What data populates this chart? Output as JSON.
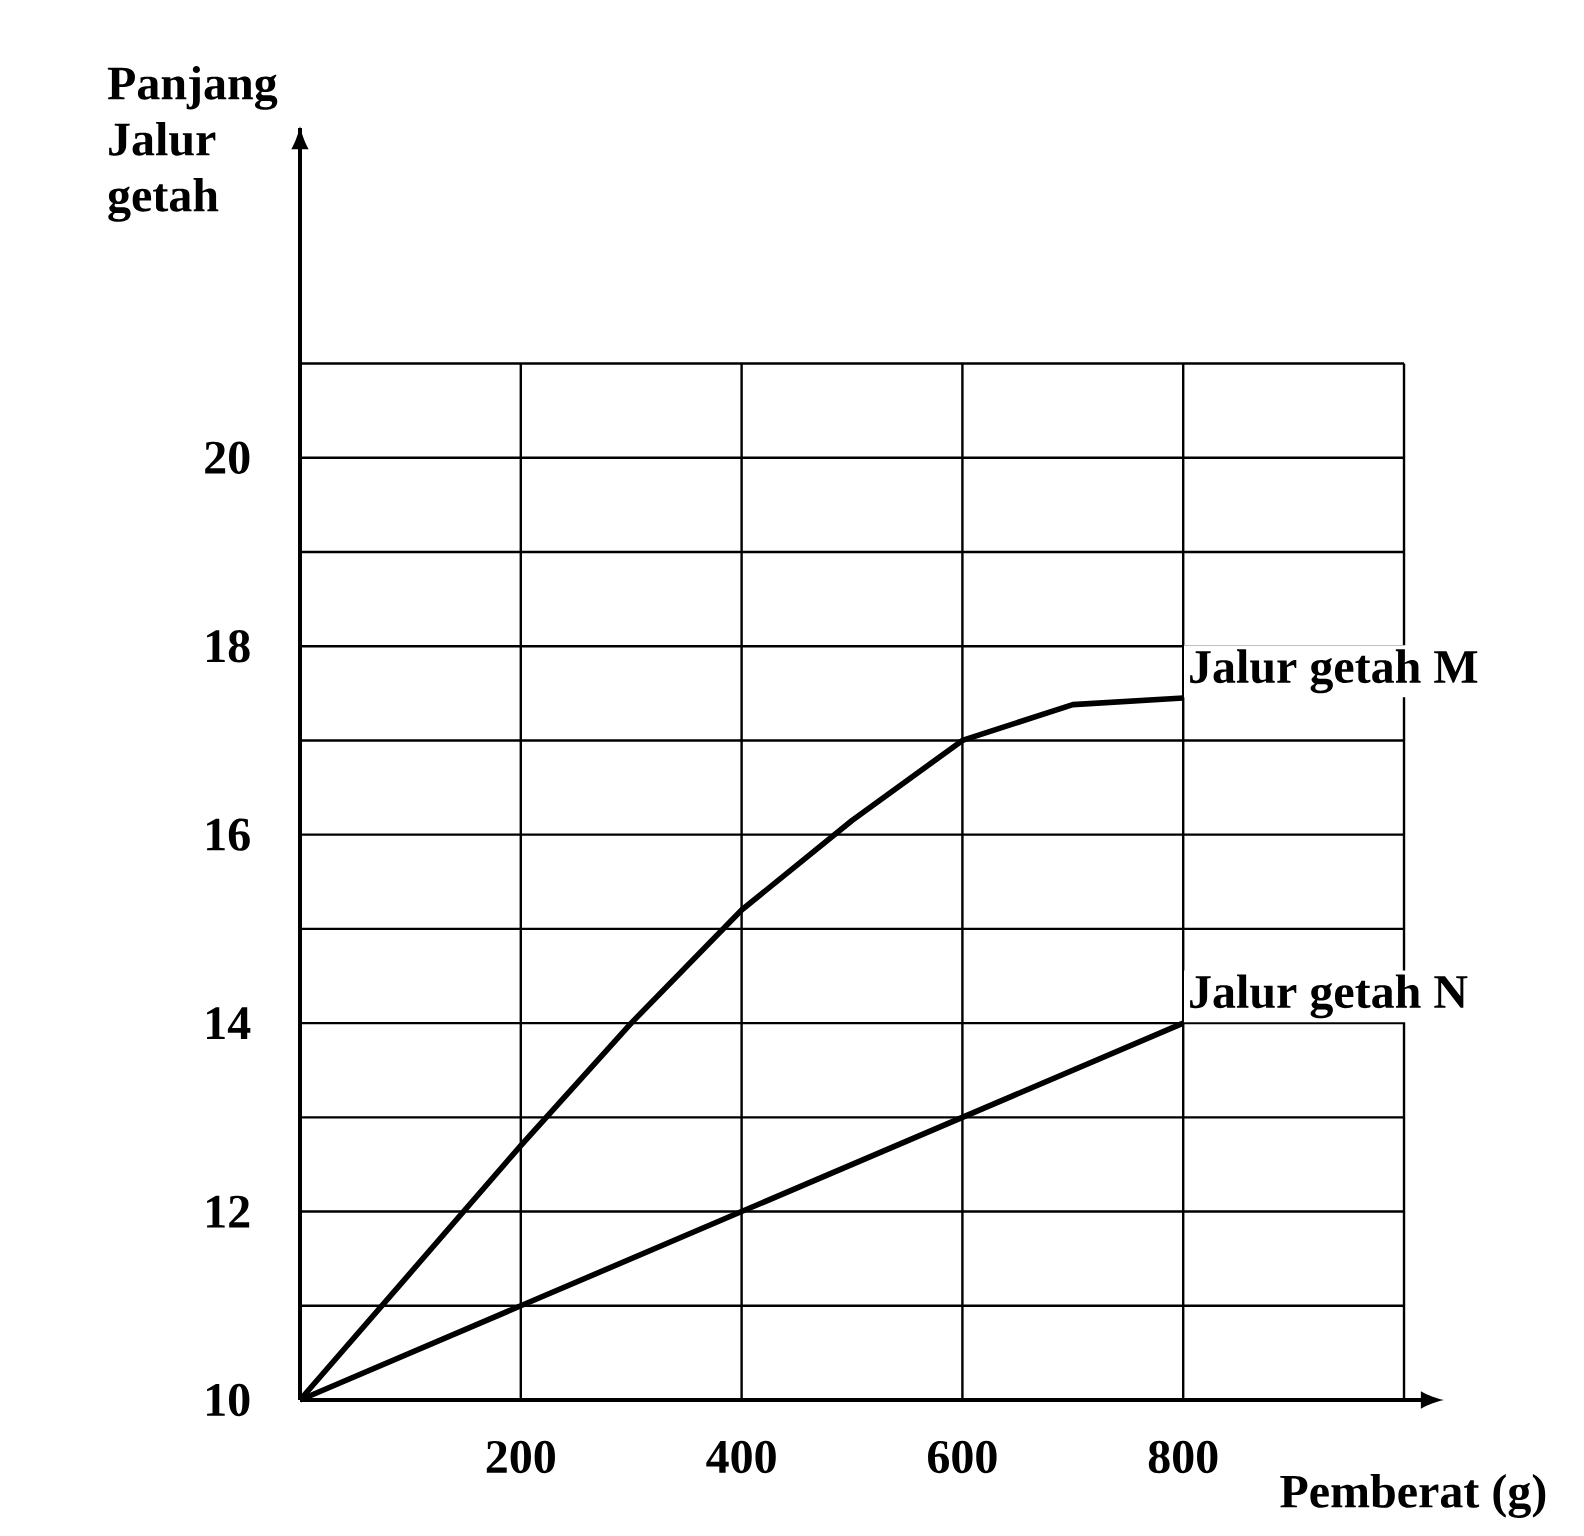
{
  "chart_data": {
    "type": "line",
    "xlabel": "Pemberat (g)",
    "ylabel": "Panjang Jalur getah",
    "xlim": [
      0,
      1000
    ],
    "ylim": [
      10,
      23.5
    ],
    "xticks": [
      200,
      400,
      600,
      800,
      {
        "value": 1000,
        "label": null
      }
    ],
    "yticks": [
      10,
      {
        "value": 11,
        "label": null
      },
      12,
      {
        "value": 13,
        "label": null
      },
      14,
      {
        "value": 15,
        "label": null
      },
      16,
      {
        "value": 17,
        "label": null
      },
      18,
      {
        "value": 19,
        "label": null
      },
      20,
      {
        "value": 21,
        "label": null
      }
    ],
    "grid": true,
    "legend": false,
    "marker": "none",
    "line_style": "solid",
    "series": [
      {
        "name": "Jalur getah M",
        "color": "#000000",
        "x": [
          0,
          100,
          200,
          300,
          400,
          500,
          600,
          700,
          800
        ],
        "values": [
          10,
          11.35,
          12.7,
          14.0,
          15.2,
          16.15,
          17.0,
          17.38,
          17.45
        ]
      },
      {
        "name": "Jalur getah N",
        "color": "#000000",
        "x": [
          0,
          200,
          400,
          600,
          800
        ],
        "values": [
          10,
          11,
          12,
          13,
          14
        ]
      }
    ]
  }
}
